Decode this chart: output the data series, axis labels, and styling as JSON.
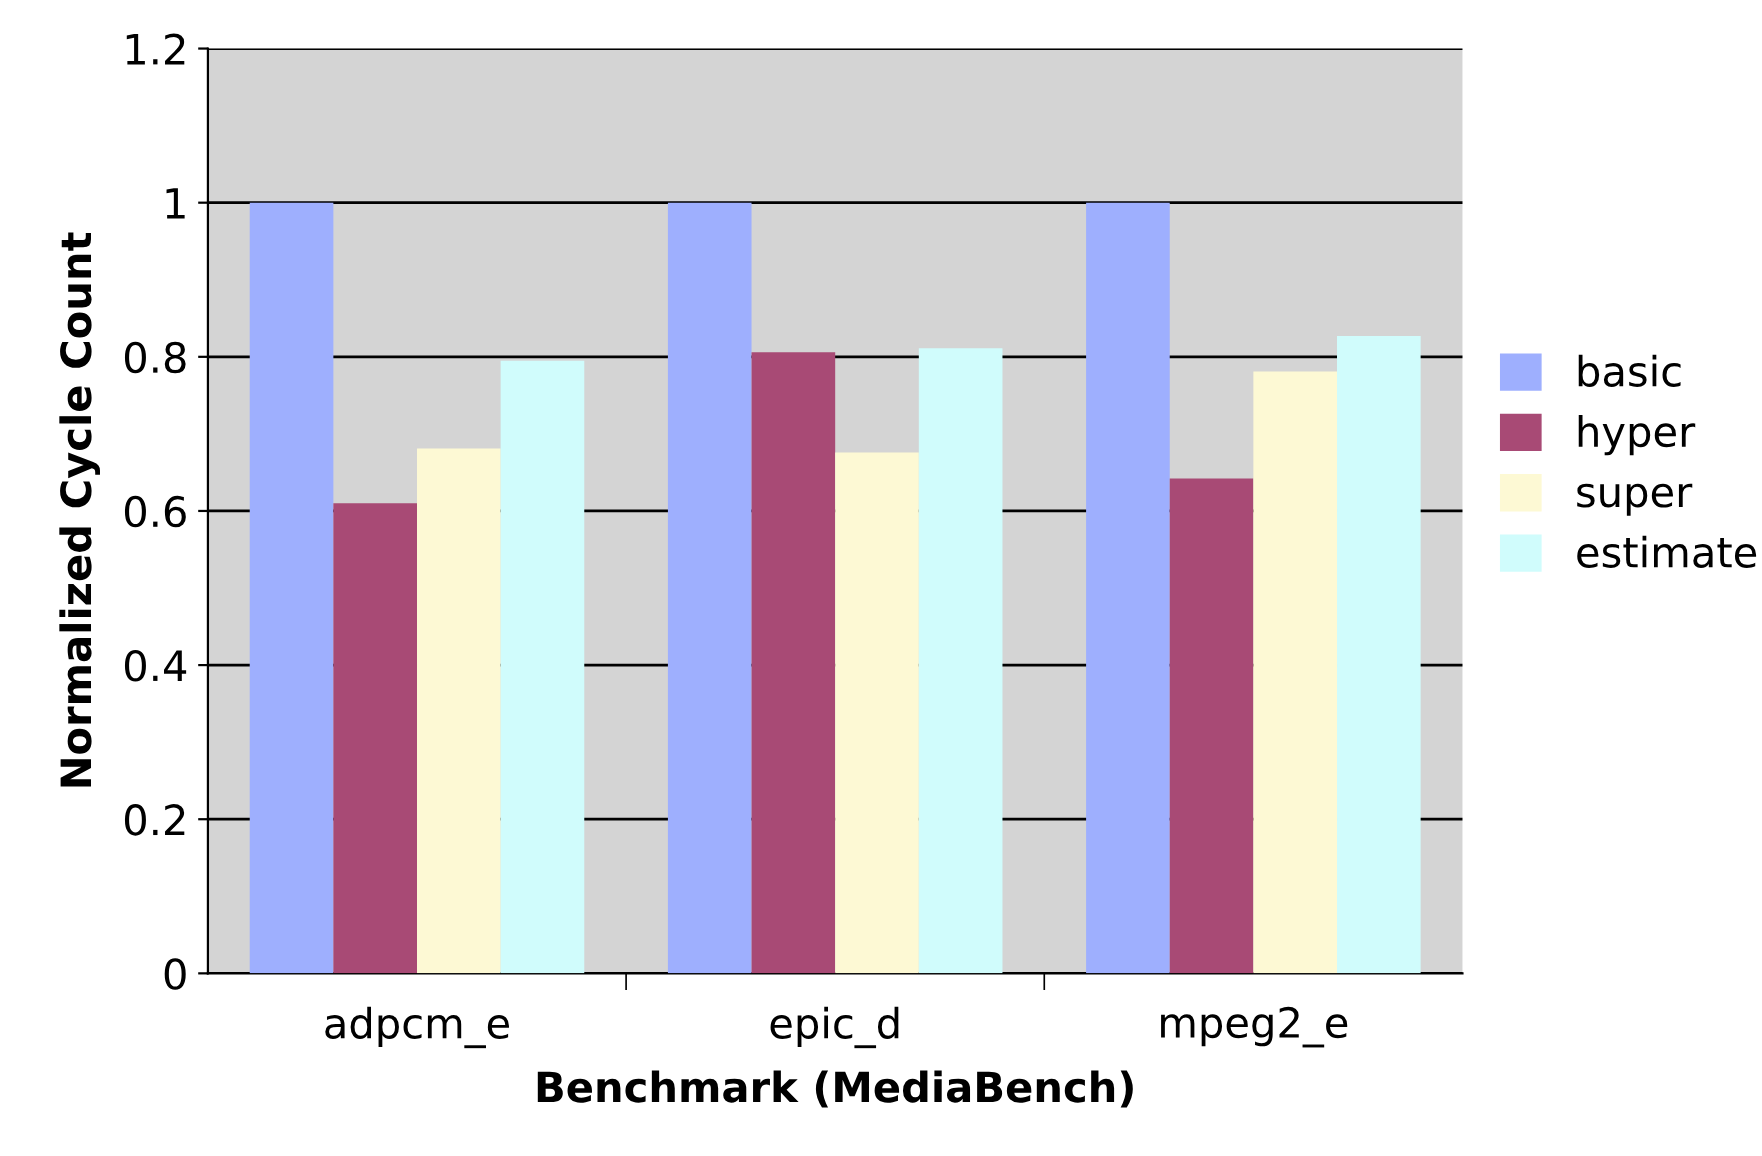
{
  "chart_data": {
    "type": "bar",
    "xlabel": "Benchmark (MediaBench)",
    "ylabel": "Normalized Cycle Count",
    "categories": [
      "adpcm_e",
      "epic_d",
      "mpeg2_e"
    ],
    "series": [
      {
        "name": "basic",
        "color": "#9eaffe",
        "values": [
          1.0,
          1.0,
          1.0
        ]
      },
      {
        "name": "hyper",
        "color": "#a84a75",
        "values": [
          0.61,
          0.806,
          0.642
        ]
      },
      {
        "name": "super",
        "color": "#fdf9d4",
        "values": [
          0.681,
          0.676,
          0.781
        ]
      },
      {
        "name": "estimate",
        "color": "#d0fcfc",
        "values": [
          0.795,
          0.811,
          0.827
        ]
      }
    ],
    "ylim": [
      0,
      1.2
    ],
    "yticks": [
      0,
      0.2,
      0.4,
      0.6,
      0.8,
      1,
      1.2
    ],
    "grid": "y",
    "legend": "right"
  }
}
